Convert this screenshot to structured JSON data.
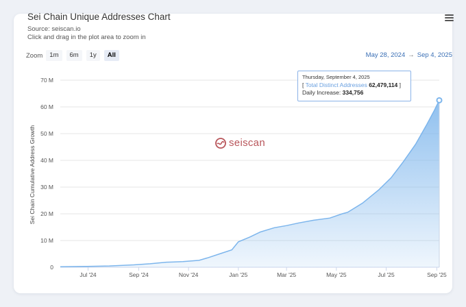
{
  "title": "Sei Chain Unique Addresses Chart",
  "source": "Source: seiscan.io",
  "instruction": "Click and drag in the plot area to zoom in",
  "zoom": {
    "label": "Zoom",
    "buttons": [
      "1m",
      "6m",
      "1y",
      "All"
    ],
    "active": "All"
  },
  "range": {
    "from": "May 28, 2024",
    "arrow": "→",
    "to": "Sep 4, 2025"
  },
  "watermark": "seiscan",
  "tooltip": {
    "date": "Thursday, September 4, 2025",
    "open_bracket": "[",
    "series": "Total Distinct Addresses",
    "value": "62,479,114",
    "close_bracket": "]",
    "daily_label": "Daily Increase:",
    "daily_value": "334,756"
  },
  "colors": {
    "line": "#7cb5ec",
    "accent": "#3a6fb5",
    "watermark": "#b8555a"
  },
  "icons": {
    "menu": "hamburger-menu-icon",
    "logo": "seiscan-logo-icon"
  },
  "chart_data": {
    "type": "area",
    "ylabel": "Sei Chain Cumulative Address Growth",
    "xlabel": "",
    "y_ticks": [
      "0",
      "10 M",
      "20 M",
      "30 M",
      "40 M",
      "50 M",
      "60 M",
      "70 M"
    ],
    "ylim": [
      0,
      70
    ],
    "x_ticks": [
      {
        "label": "Jul '24",
        "day": 34
      },
      {
        "label": "Sep '24",
        "day": 96
      },
      {
        "label": "Nov '24",
        "day": 157
      },
      {
        "label": "Jan '25",
        "day": 218
      },
      {
        "label": "Mar '25",
        "day": 277
      },
      {
        "label": "May '25",
        "day": 338
      },
      {
        "label": "Jul '25",
        "day": 399
      },
      {
        "label": "Sep '25",
        "day": 461
      }
    ],
    "x_range_days": [
      0,
      464
    ],
    "units": "millions of addresses",
    "series": [
      {
        "name": "Total Distinct Addresses",
        "points": [
          [
            0,
            0.2
          ],
          [
            30,
            0.3
          ],
          [
            60,
            0.5
          ],
          [
            90,
            0.9
          ],
          [
            110,
            1.3
          ],
          [
            130,
            1.9
          ],
          [
            150,
            2.1
          ],
          [
            170,
            2.6
          ],
          [
            180,
            3.5
          ],
          [
            195,
            5.0
          ],
          [
            210,
            6.5
          ],
          [
            218,
            9.5
          ],
          [
            232,
            11.3
          ],
          [
            245,
            13.2
          ],
          [
            262,
            14.8
          ],
          [
            277,
            15.6
          ],
          [
            292,
            16.6
          ],
          [
            310,
            17.6
          ],
          [
            330,
            18.4
          ],
          [
            345,
            20.0
          ],
          [
            352,
            20.6
          ],
          [
            370,
            24.0
          ],
          [
            390,
            29.0
          ],
          [
            405,
            33.5
          ],
          [
            420,
            39.5
          ],
          [
            435,
            46.0
          ],
          [
            448,
            53.0
          ],
          [
            458,
            58.7
          ],
          [
            464,
            62.48
          ]
        ]
      }
    ]
  }
}
